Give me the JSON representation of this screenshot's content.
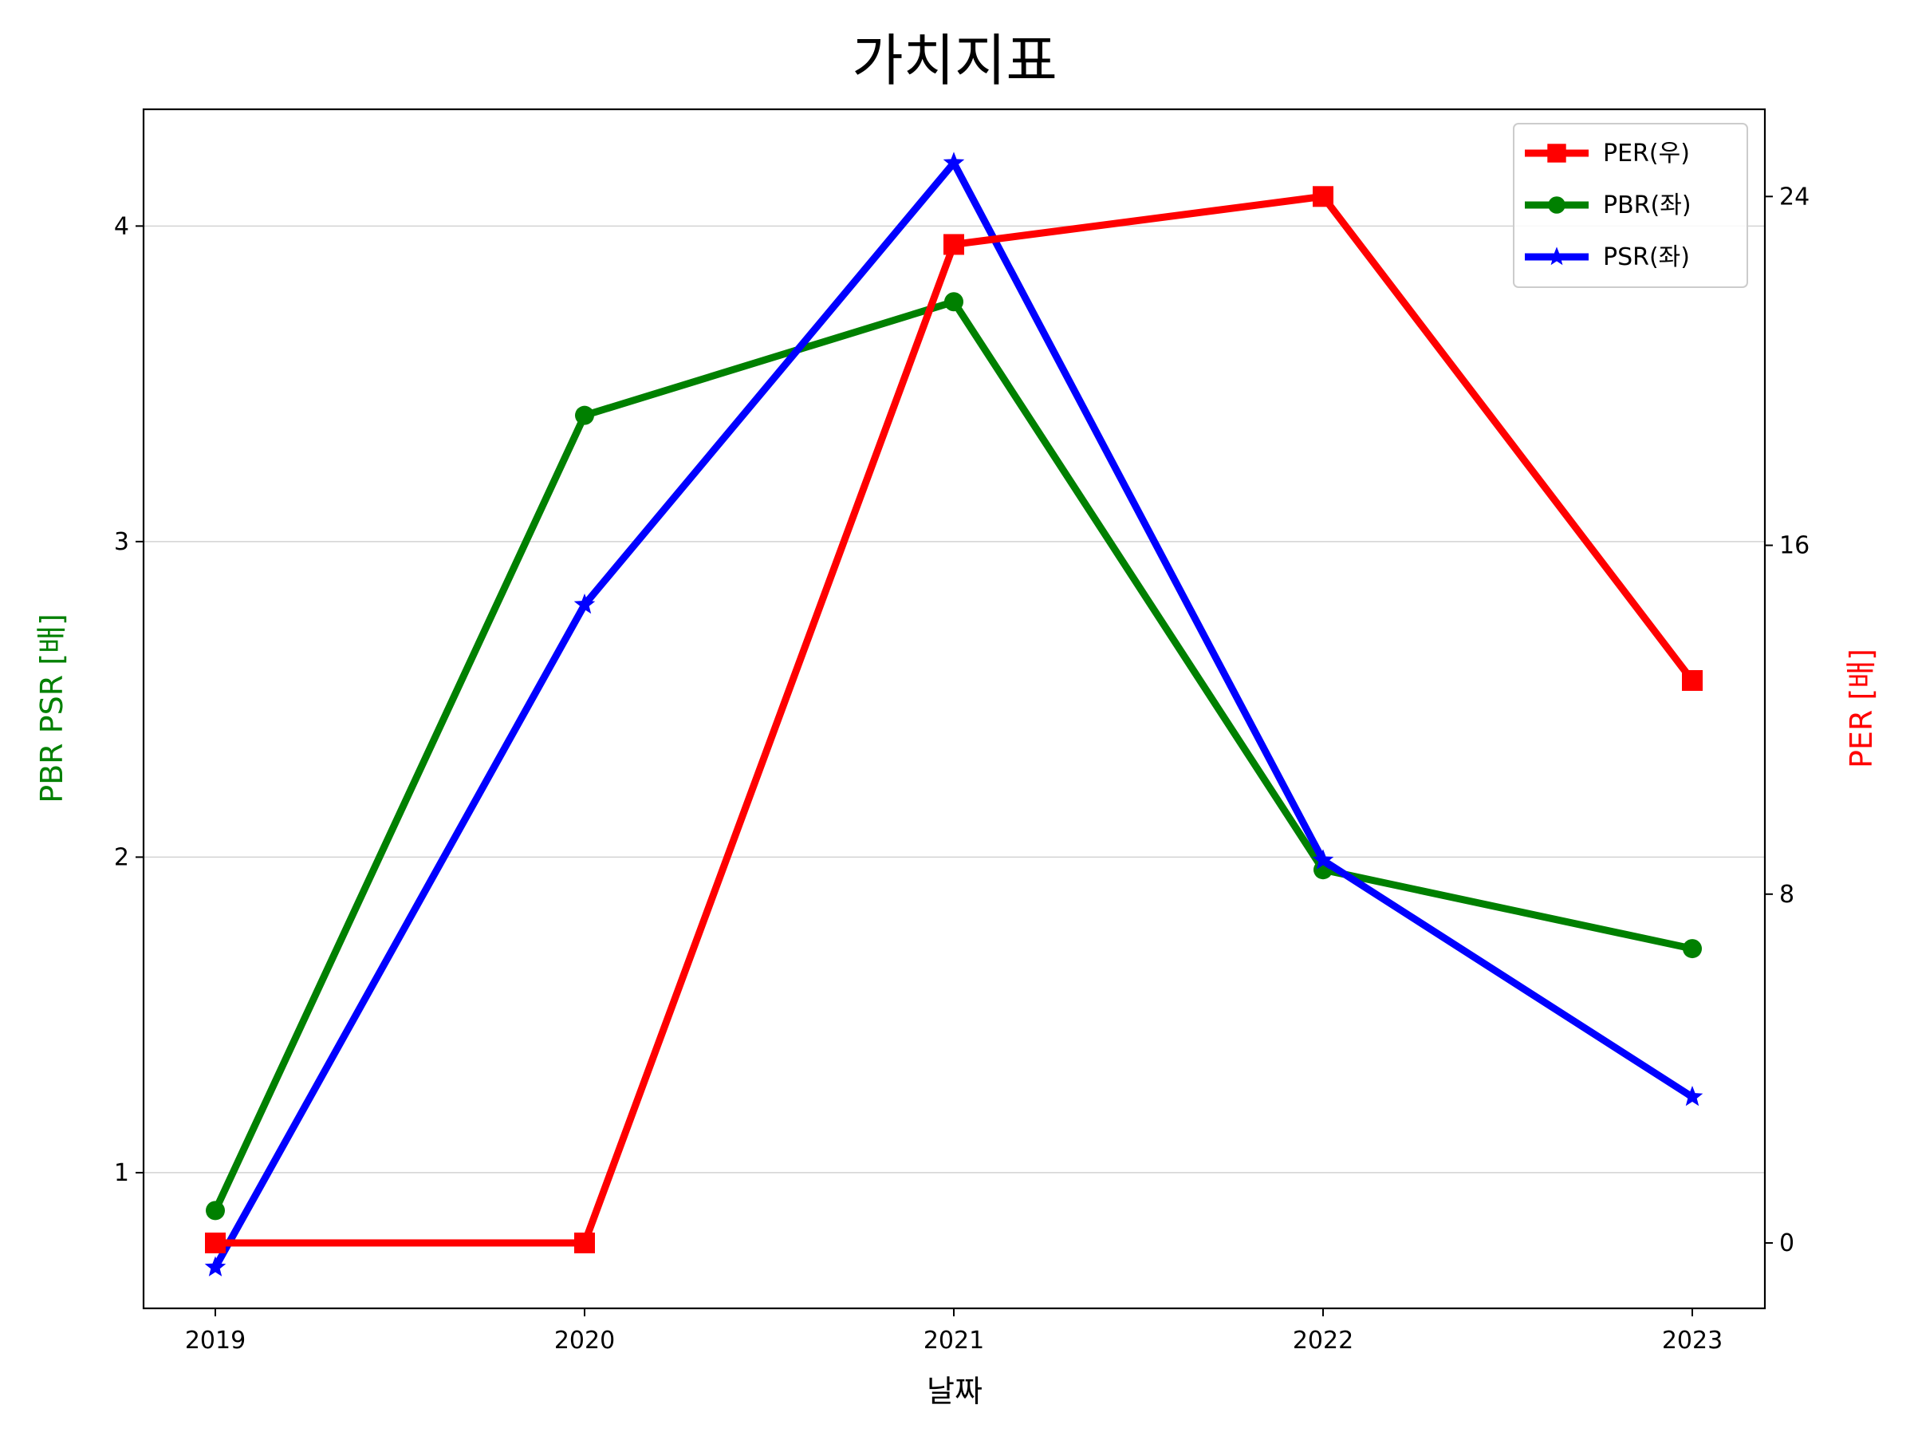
{
  "chart_data": {
    "type": "line",
    "title": "가치지표",
    "xlabel": "날짜",
    "ylabel_left": "PBR PSR [배]",
    "ylabel_right": "PER [배]",
    "x": [
      "2019",
      "2020",
      "2021",
      "2022",
      "2023"
    ],
    "ylim_left": [
      0.57,
      4.37
    ],
    "ylim_right": [
      -1.5,
      26.0
    ],
    "yticks_left": [
      1,
      2,
      3,
      4
    ],
    "yticks_right": [
      0,
      8,
      16,
      24
    ],
    "grid": "horizontal-left",
    "legend_position": "top-right",
    "series": [
      {
        "name": "PER(우)",
        "axis": "right",
        "color": "#ff0000",
        "marker": "square",
        "values": [
          0,
          0,
          22.9,
          24.0,
          12.9
        ]
      },
      {
        "name": "PBR(좌)",
        "axis": "left",
        "color": "#008000",
        "marker": "circle",
        "values": [
          0.88,
          3.4,
          3.76,
          1.96,
          1.71
        ]
      },
      {
        "name": "PSR(좌)",
        "axis": "left",
        "color": "#0000ff",
        "marker": "star",
        "values": [
          0.7,
          2.8,
          4.2,
          1.99,
          1.24
        ]
      }
    ]
  }
}
